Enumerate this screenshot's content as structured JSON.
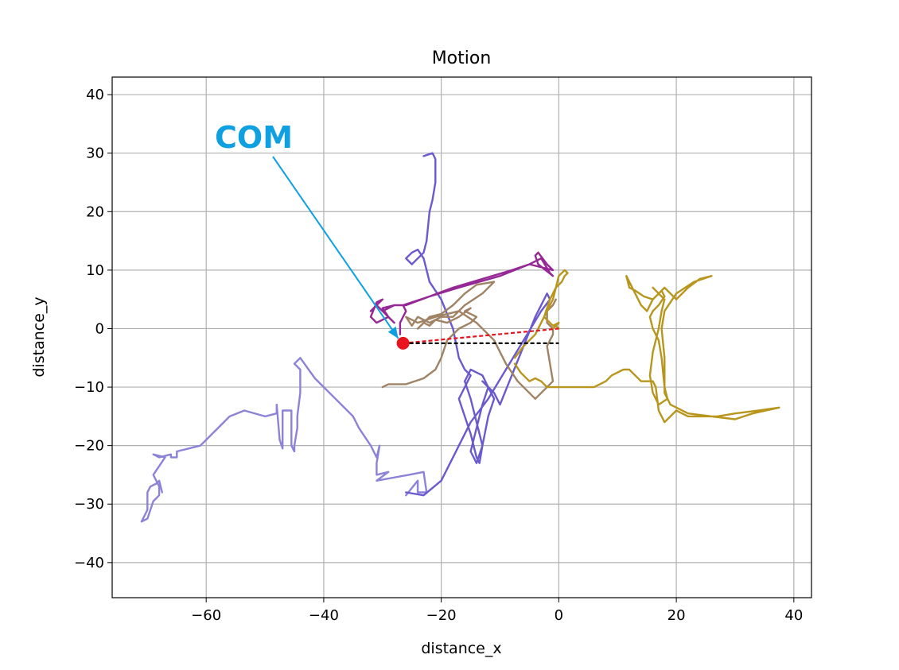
{
  "chart_data": {
    "type": "line",
    "title": "Motion",
    "xlabel": "distance_x",
    "ylabel": "distance_y",
    "xlim": [
      -76,
      43
    ],
    "ylim": [
      -46,
      43
    ],
    "xticks": [
      -60,
      -40,
      -20,
      0,
      20,
      40
    ],
    "yticks": [
      -40,
      -30,
      -20,
      -10,
      0,
      10,
      20,
      30,
      40
    ],
    "grid": true,
    "legend": "none",
    "annotation": {
      "text": "COM",
      "color": "#0EA0E0",
      "points_to": [
        -26.5,
        -2.5
      ]
    },
    "com_point": {
      "x": -26.5,
      "y": -2.5,
      "color": "#E8141E"
    },
    "reference_lines": [
      {
        "style": "dashed",
        "color": "#E8141E",
        "points": [
          [
            -26.5,
            -2.5
          ],
          [
            0,
            0
          ]
        ]
      },
      {
        "style": "dashed",
        "color": "#000000",
        "points": [
          [
            -26.5,
            -2.5
          ],
          [
            0,
            -2.5
          ]
        ]
      }
    ],
    "series": [
      {
        "color": "#8C82D8",
        "values": [
          [
            -26,
            -28.5
          ],
          [
            -24,
            -26
          ],
          [
            -24,
            -28
          ],
          [
            -22.5,
            -28
          ],
          [
            -23,
            -24.5
          ],
          [
            -25.5,
            -25
          ],
          [
            -31,
            -26
          ],
          [
            -29,
            -24.5
          ],
          [
            -31,
            -25
          ],
          [
            -31,
            -23
          ],
          [
            -30.5,
            -20
          ],
          [
            -31,
            -22
          ],
          [
            -32,
            -20
          ],
          [
            -34,
            -17
          ],
          [
            -35,
            -15
          ],
          [
            -38,
            -12
          ],
          [
            -41.5,
            -8.5
          ],
          [
            -44,
            -5
          ],
          [
            -45,
            -6
          ],
          [
            -44,
            -7
          ],
          [
            -44,
            -8
          ],
          [
            -44,
            -11
          ],
          [
            -44.5,
            -15
          ],
          [
            -44.5,
            -17
          ],
          [
            -45,
            -20
          ],
          [
            -45,
            -21
          ],
          [
            -45.5,
            -20
          ],
          [
            -45.5,
            -14
          ],
          [
            -47,
            -14
          ],
          [
            -47,
            -20.5
          ],
          [
            -47.5,
            -19
          ],
          [
            -48,
            -13
          ],
          [
            -48,
            -14.5
          ],
          [
            -50,
            -15
          ],
          [
            -53.5,
            -14
          ],
          [
            -56,
            -15
          ],
          [
            -58,
            -17
          ],
          [
            -61,
            -20
          ],
          [
            -65,
            -21
          ],
          [
            -65,
            -22
          ],
          [
            -66,
            -22
          ],
          [
            -66,
            -21.5
          ],
          [
            -68,
            -22
          ],
          [
            -69,
            -21.5
          ],
          [
            -67,
            -22
          ],
          [
            -69,
            -25
          ],
          [
            -68,
            -27
          ],
          [
            -68,
            -28.5
          ],
          [
            -69,
            -29.5
          ],
          [
            -69.5,
            -31
          ],
          [
            -70,
            -32.5
          ],
          [
            -71,
            -33
          ],
          [
            -70,
            -31
          ],
          [
            -70,
            -28
          ],
          [
            -69.5,
            -27
          ],
          [
            -68.5,
            -26.5
          ],
          [
            -68,
            -26
          ],
          [
            -67.5,
            -28
          ]
        ]
      },
      {
        "color": "#6A5ACD",
        "values": [
          [
            -23,
            29.5
          ],
          [
            -21.5,
            30
          ],
          [
            -21,
            29
          ],
          [
            -21,
            25
          ],
          [
            -21.5,
            22
          ],
          [
            -22,
            20
          ],
          [
            -22.5,
            15
          ],
          [
            -23,
            13
          ],
          [
            -25,
            11
          ],
          [
            -26,
            12
          ],
          [
            -25,
            13
          ],
          [
            -24,
            13.5
          ],
          [
            -23,
            12
          ],
          [
            -22,
            8
          ],
          [
            -20,
            5
          ],
          [
            -18,
            0
          ],
          [
            -17,
            -5
          ],
          [
            -16,
            -7
          ],
          [
            -15,
            -8
          ],
          [
            -16,
            -10
          ],
          [
            -17,
            -12
          ],
          [
            -16,
            -15
          ],
          [
            -15,
            -18
          ],
          [
            -14,
            -22
          ],
          [
            -13.5,
            -23
          ],
          [
            -13,
            -20
          ],
          [
            -14,
            -16
          ],
          [
            -15,
            -12
          ],
          [
            -16,
            -9
          ],
          [
            -15,
            -7
          ],
          [
            -13,
            -8
          ],
          [
            -12,
            -10
          ],
          [
            -13,
            -13
          ],
          [
            -14,
            -17
          ],
          [
            -15,
            -21
          ],
          [
            -14,
            -23
          ],
          [
            -13,
            -20
          ],
          [
            -12,
            -15
          ],
          [
            -11,
            -12
          ],
          [
            -12,
            -10
          ],
          [
            -13,
            -9
          ],
          [
            -11,
            -11
          ],
          [
            -10,
            -13
          ],
          [
            -8,
            -8
          ],
          [
            -6,
            -3
          ],
          [
            -4,
            2
          ],
          [
            -2,
            6
          ],
          [
            -1.5,
            5
          ],
          [
            -3,
            3
          ],
          [
            -6,
            -2
          ],
          [
            -9,
            -7
          ],
          [
            -12,
            -12
          ],
          [
            -15,
            -16
          ],
          [
            -18,
            -22
          ],
          [
            -20,
            -26
          ],
          [
            -23,
            -28.5
          ],
          [
            -26,
            -28
          ]
        ]
      },
      {
        "color": "#962896",
        "values": [
          [
            -27,
            -1
          ],
          [
            -27,
            1
          ],
          [
            -26,
            3
          ],
          [
            -26.5,
            4
          ],
          [
            -22,
            5.5
          ],
          [
            -18,
            7
          ],
          [
            -13,
            8.5
          ],
          [
            -8,
            10
          ],
          [
            -5,
            11
          ],
          [
            -3,
            12
          ],
          [
            -1.5,
            9.5
          ],
          [
            -2,
            10
          ],
          [
            -1,
            9
          ],
          [
            -3.5,
            11
          ],
          [
            -4,
            12.5
          ],
          [
            -3.5,
            13
          ],
          [
            -2,
            11
          ],
          [
            -1,
            10
          ],
          [
            -5,
            11
          ],
          [
            -10,
            9
          ],
          [
            -17,
            7
          ],
          [
            -22,
            5.5
          ],
          [
            -26,
            4
          ],
          [
            -28,
            4
          ],
          [
            -30,
            3
          ],
          [
            -31,
            4
          ],
          [
            -32,
            3
          ],
          [
            -30,
            5
          ],
          [
            -31,
            4.5
          ],
          [
            -32,
            2
          ],
          [
            -31,
            1
          ],
          [
            -29,
            2
          ],
          [
            -30,
            3.5
          ],
          [
            -28,
            4
          ],
          [
            -30,
            3
          ],
          [
            -28,
            1
          ],
          [
            -29,
            2
          ]
        ]
      },
      {
        "color": "#A08264",
        "values": [
          [
            -30,
            -10
          ],
          [
            -29,
            -9.5
          ],
          [
            -26,
            -9.5
          ],
          [
            -23,
            -8.5
          ],
          [
            -21,
            -7
          ],
          [
            -20,
            -5
          ],
          [
            -19,
            -2
          ],
          [
            -17,
            0
          ],
          [
            -15,
            1
          ],
          [
            -14,
            2
          ],
          [
            -16,
            3
          ],
          [
            -15,
            3.5
          ],
          [
            -17,
            2
          ],
          [
            -19,
            1
          ],
          [
            -21,
            1.5
          ],
          [
            -22,
            0.5
          ],
          [
            -23,
            1
          ],
          [
            -24,
            0
          ],
          [
            -22,
            2
          ],
          [
            -20,
            2.5
          ],
          [
            -18,
            4
          ],
          [
            -16,
            6
          ],
          [
            -14,
            7.5
          ],
          [
            -11,
            8
          ],
          [
            -13,
            6
          ],
          [
            -16,
            4
          ],
          [
            -18,
            2
          ],
          [
            -20,
            2
          ],
          [
            -22,
            1
          ],
          [
            -24,
            2
          ],
          [
            -25,
            0.5
          ],
          [
            -26,
            2
          ],
          [
            -24,
            1
          ],
          [
            -21,
            2
          ],
          [
            -19,
            2.5
          ],
          [
            -17,
            3
          ],
          [
            -14,
            1
          ],
          [
            -11,
            -2
          ],
          [
            -9,
            -6
          ],
          [
            -7,
            -9
          ],
          [
            -4,
            -12
          ],
          [
            -1,
            -9
          ],
          [
            -1.5,
            -6
          ],
          [
            -2,
            -3
          ],
          [
            -1,
            -1
          ],
          [
            -1,
            0
          ],
          [
            -2,
            1
          ],
          [
            -2,
            3
          ],
          [
            -1,
            4
          ],
          [
            -0.5,
            5
          ]
        ]
      },
      {
        "color": "#B8961E",
        "values": [
          [
            -7.5,
            -6
          ],
          [
            -6.5,
            -7.5
          ],
          [
            -5,
            -9
          ],
          [
            -4,
            -8.5
          ],
          [
            -3,
            -9
          ],
          [
            -2,
            -10
          ],
          [
            0,
            -10
          ],
          [
            6,
            -10
          ],
          [
            8,
            -9
          ],
          [
            9,
            -8
          ],
          [
            11,
            -7
          ],
          [
            12,
            -7
          ],
          [
            14,
            -9
          ],
          [
            16,
            -9
          ],
          [
            16.5,
            -10
          ],
          [
            17,
            -14
          ],
          [
            18,
            -16
          ],
          [
            20,
            -14
          ],
          [
            22,
            -15
          ],
          [
            24,
            -15
          ],
          [
            27,
            -15
          ],
          [
            30,
            -14.5
          ],
          [
            34,
            -14
          ],
          [
            37.5,
            -13.5
          ],
          [
            33,
            -14.5
          ],
          [
            30,
            -15.5
          ],
          [
            26,
            -15
          ],
          [
            22,
            -14.5
          ],
          [
            19,
            -13
          ],
          [
            18,
            -11
          ],
          [
            18,
            -5
          ],
          [
            17.5,
            0
          ],
          [
            18,
            3
          ],
          [
            20,
            6
          ],
          [
            23,
            8
          ],
          [
            26,
            9
          ],
          [
            24,
            8.5
          ],
          [
            22,
            7
          ],
          [
            20,
            5
          ],
          [
            19,
            6
          ],
          [
            18,
            7
          ],
          [
            17,
            6
          ],
          [
            16,
            5
          ],
          [
            15,
            3
          ],
          [
            14,
            4
          ],
          [
            13,
            6
          ],
          [
            12,
            8
          ],
          [
            11.5,
            9
          ],
          [
            12,
            7
          ],
          [
            13,
            6.5
          ],
          [
            14.5,
            5.5
          ],
          [
            16,
            5
          ],
          [
            17.5,
            6.5
          ],
          [
            18,
            5.5
          ],
          [
            17,
            4
          ],
          [
            16,
            3
          ],
          [
            15.5,
            2
          ],
          [
            16,
            0
          ],
          [
            17,
            -2
          ],
          [
            17.5,
            -5
          ],
          [
            18,
            -10
          ],
          [
            18.5,
            -12
          ],
          [
            17,
            -13
          ],
          [
            16,
            -11
          ],
          [
            15.5,
            -8
          ],
          [
            16,
            -4
          ],
          [
            17,
            0
          ],
          [
            17.5,
            3
          ],
          [
            18,
            5
          ],
          [
            17,
            6
          ],
          [
            16,
            7
          ]
        ]
      },
      {
        "color": "#B8961E",
        "values": [
          [
            -7.5,
            -5
          ],
          [
            -6,
            -3
          ],
          [
            -4,
            -1
          ],
          [
            -3,
            1
          ],
          [
            -2,
            3
          ],
          [
            -1,
            5
          ],
          [
            -0.5,
            7
          ],
          [
            0.5,
            8
          ],
          [
            1,
            9
          ],
          [
            1.5,
            9.5
          ],
          [
            1,
            10
          ],
          [
            0,
            9
          ],
          [
            -0.5,
            7
          ],
          [
            -1.5,
            5
          ],
          [
            -2.5,
            2
          ],
          [
            -1,
            0.5
          ],
          [
            0,
            1
          ],
          [
            -1,
            0
          ],
          [
            -0.5,
            0.5
          ],
          [
            0,
            0
          ]
        ]
      }
    ]
  }
}
